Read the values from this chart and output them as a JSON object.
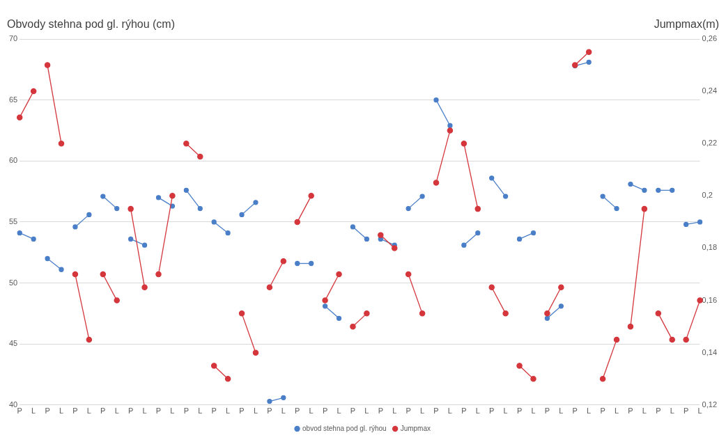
{
  "chart_data": {
    "type": "line",
    "ylabel": "Obvody stehna pod gl. rýhou (cm)",
    "y2label": "Jumpmax(m)",
    "categories": [
      "P",
      "L",
      "P",
      "L",
      "P",
      "L",
      "P",
      "L",
      "P",
      "L",
      "P",
      "L",
      "P",
      "L",
      "P",
      "L",
      "P",
      "L",
      "P",
      "L",
      "P",
      "L",
      "P",
      "L",
      "P",
      "L",
      "P",
      "L",
      "P",
      "L",
      "P",
      "L",
      "P",
      "L",
      "P",
      "L",
      "P",
      "L",
      "P",
      "L",
      "P",
      "L",
      "P",
      "L",
      "P",
      "L",
      "P",
      "L",
      "P",
      "L"
    ],
    "series": [
      {
        "name": "obvod stehna pod gl. rýhou",
        "color": "#4a7fc8",
        "values": [
          54.1,
          53.6,
          52.0,
          51.1,
          54.6,
          55.6,
          57.1,
          56.1,
          53.6,
          53.1,
          57.0,
          56.3,
          57.6,
          56.1,
          55.0,
          54.1,
          55.6,
          56.6,
          40.3,
          40.6,
          51.6,
          51.6,
          48.1,
          47.1,
          54.6,
          53.6,
          53.6,
          53.1,
          56.1,
          57.1,
          65.0,
          62.9,
          53.1,
          54.1,
          58.6,
          57.1,
          53.6,
          54.1,
          47.1,
          48.1,
          67.8,
          68.1,
          57.1,
          56.1,
          58.1,
          57.6,
          57.6,
          57.6,
          54.8,
          55.0
        ]
      },
      {
        "name": "Jumpmax",
        "color": "#d4363c",
        "axis": "y2",
        "values": [
          0.23,
          0.24,
          0.25,
          0.22,
          0.17,
          0.145,
          0.17,
          0.16,
          0.195,
          0.165,
          0.17,
          0.2,
          0.22,
          0.215,
          0.135,
          0.13,
          0.155,
          0.14,
          0.165,
          0.175,
          0.19,
          0.2,
          0.16,
          0.17,
          0.15,
          0.155,
          0.185,
          0.18,
          0.17,
          0.155,
          0.205,
          0.225,
          0.22,
          0.195,
          0.165,
          0.155,
          0.135,
          0.13,
          0.155,
          0.165,
          0.25,
          0.255,
          0.13,
          0.145,
          0.15,
          0.195,
          0.155,
          0.145,
          0.145,
          0.16
        ]
      }
    ],
    "ylim": [
      40,
      70
    ],
    "yticks": [
      40,
      45,
      50,
      55,
      60,
      65,
      70
    ],
    "y2lim": [
      0.12,
      0.26
    ],
    "y2ticks": [
      {
        "value": 0.12,
        "label": "0,12"
      },
      {
        "value": 0.14,
        "label": "0,14"
      },
      {
        "value": 0.16,
        "label": "0,16"
      },
      {
        "value": 0.18,
        "label": "0,18"
      },
      {
        "value": 0.2,
        "label": "0,2"
      },
      {
        "value": 0.22,
        "label": "0,22"
      },
      {
        "value": 0.24,
        "label": "0,24"
      },
      {
        "value": 0.26,
        "label": "0,26"
      }
    ],
    "grid": "y",
    "legend": "bottom",
    "marker": "circle",
    "line_style": "solid"
  }
}
